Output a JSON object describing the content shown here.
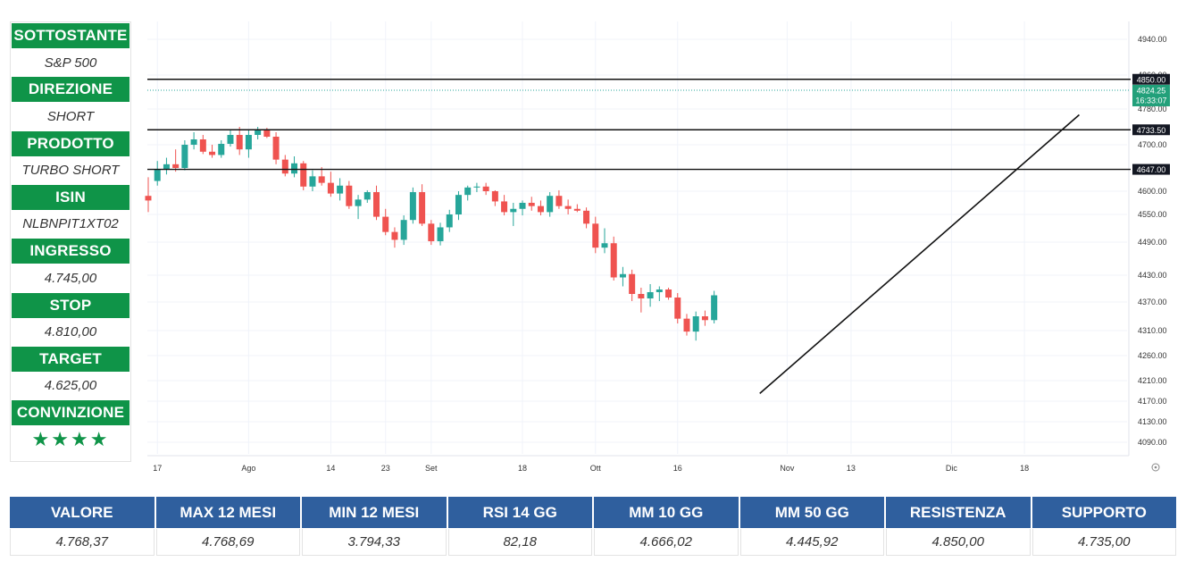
{
  "panel": {
    "items": [
      {
        "label": "SOTTOSTANTE",
        "value": "S&P 500"
      },
      {
        "label": "DIREZIONE",
        "value": "SHORT"
      },
      {
        "label": "PRODOTTO",
        "value": "TURBO SHORT"
      },
      {
        "label": "ISIN",
        "value": "NLBNPIT1XT02"
      },
      {
        "label": "INGRESSO",
        "value": "4.745,00"
      },
      {
        "label": "STOP",
        "value": "4.810,00"
      },
      {
        "label": "TARGET",
        "value": "4.625,00"
      },
      {
        "label": "CONVINZIONE",
        "value": "★★★★"
      }
    ],
    "accent_color": "#0f9448"
  },
  "stats": {
    "header_color": "#2f5f9e",
    "columns": [
      {
        "label": "VALORE",
        "value": "4.768,37"
      },
      {
        "label": "MAX 12 MESI",
        "value": "4.768,69"
      },
      {
        "label": "MIN 12 MESI",
        "value": "3.794,33"
      },
      {
        "label": "RSI 14 GG",
        "value": "82,18"
      },
      {
        "label": "MM 10 GG",
        "value": "4.666,02"
      },
      {
        "label": "MM 50 GG",
        "value": "4.445,92"
      },
      {
        "label": "RESISTENZA",
        "value": "4.850,00"
      },
      {
        "label": "SUPPORTO",
        "value": "4.735,00"
      }
    ]
  },
  "chart_data": {
    "type": "candlestick",
    "up_color": "#26a69a",
    "down_color": "#ef5350",
    "y_ticks": [
      "4940.00",
      "4860.00",
      "4780.00",
      "4700.00",
      "4600.00",
      "4550.00",
      "4490.00",
      "4430.00",
      "4370.00",
      "4310.00",
      "4260.00",
      "4210.00",
      "4170.00",
      "4130.00",
      "4090.00"
    ],
    "y_tick_values": [
      4940,
      4860,
      4780,
      4700,
      4600,
      4550,
      4490,
      4430,
      4370,
      4310,
      4260,
      4210,
      4170,
      4130,
      4090
    ],
    "x_ticks": [
      {
        "label": "17",
        "index": 1
      },
      {
        "label": "Ago",
        "index": 11
      },
      {
        "label": "14",
        "index": 20
      },
      {
        "label": "23",
        "index": 26
      },
      {
        "label": "Set",
        "index": 31
      },
      {
        "label": "18",
        "index": 41
      },
      {
        "label": "Ott",
        "index": 49
      },
      {
        "label": "16",
        "index": 58
      },
      {
        "label": "Nov",
        "index": 70
      },
      {
        "label": "13",
        "index": 77
      },
      {
        "label": "Dic",
        "index": 88
      },
      {
        "label": "18",
        "index": 96
      }
    ],
    "horizontal_levels": [
      {
        "value": 4850,
        "label": "4850.00"
      },
      {
        "value": 4733.5,
        "label": "4733.50"
      },
      {
        "value": 4647,
        "label": "4647.00"
      }
    ],
    "last_price": {
      "value": 4824.25,
      "label": "4824.25",
      "time": "16:33:07"
    },
    "trendline": {
      "start": {
        "index": 67,
        "value": 4185
      },
      "end": {
        "index": 102,
        "value": 4767
      }
    },
    "candles": [
      [
        4590,
        4630,
        4555,
        4580
      ],
      [
        4622,
        4665,
        4612,
        4648
      ],
      [
        4648,
        4672,
        4636,
        4658
      ],
      [
        4658,
        4690,
        4642,
        4650
      ],
      [
        4650,
        4710,
        4645,
        4700
      ],
      [
        4700,
        4728,
        4690,
        4712
      ],
      [
        4712,
        4722,
        4680,
        4685
      ],
      [
        4685,
        4700,
        4672,
        4678
      ],
      [
        4678,
        4710,
        4672,
        4702
      ],
      [
        4702,
        4735,
        4696,
        4722
      ],
      [
        4722,
        4740,
        4678,
        4690
      ],
      [
        4690,
        4735,
        4672,
        4722
      ],
      [
        4722,
        4740,
        4712,
        4732
      ],
      [
        4732,
        4738,
        4715,
        4718
      ],
      [
        4718,
        4728,
        4658,
        4668
      ],
      [
        4668,
        4678,
        4632,
        4638
      ],
      [
        4638,
        4675,
        4630,
        4660
      ],
      [
        4660,
        4665,
        4602,
        4610
      ],
      [
        4610,
        4645,
        4600,
        4632
      ],
      [
        4632,
        4652,
        4612,
        4618
      ],
      [
        4618,
        4642,
        4588,
        4595
      ],
      [
        4595,
        4628,
        4580,
        4612
      ],
      [
        4612,
        4622,
        4562,
        4568
      ],
      [
        4568,
        4592,
        4540,
        4582
      ],
      [
        4582,
        4602,
        4575,
        4598
      ],
      [
        4598,
        4612,
        4538,
        4545
      ],
      [
        4545,
        4562,
        4505,
        4512
      ],
      [
        4512,
        4522,
        4480,
        4495
      ],
      [
        4495,
        4548,
        4485,
        4538
      ],
      [
        4538,
        4608,
        4530,
        4598
      ],
      [
        4598,
        4615,
        4525,
        4530
      ],
      [
        4530,
        4538,
        4485,
        4492
      ],
      [
        4492,
        4532,
        4484,
        4522
      ],
      [
        4522,
        4560,
        4512,
        4550
      ],
      [
        4550,
        4600,
        4538,
        4592
      ],
      [
        4592,
        4612,
        4580,
        4608
      ],
      [
        4608,
        4618,
        4598,
        4610
      ],
      [
        4610,
        4618,
        4592,
        4600
      ],
      [
        4600,
        4602,
        4568,
        4578
      ],
      [
        4578,
        4592,
        4548,
        4555
      ],
      [
        4555,
        4575,
        4525,
        4562
      ],
      [
        4562,
        4580,
        4548,
        4575
      ],
      [
        4575,
        4588,
        4558,
        4568
      ],
      [
        4568,
        4580,
        4548,
        4555
      ],
      [
        4555,
        4598,
        4545,
        4590
      ],
      [
        4590,
        4602,
        4562,
        4568
      ],
      [
        4568,
        4582,
        4550,
        4562
      ],
      [
        4562,
        4572,
        4555,
        4558
      ],
      [
        4558,
        4565,
        4520,
        4530
      ],
      [
        4530,
        4545,
        4470,
        4480
      ],
      [
        4480,
        4520,
        4470,
        4488
      ],
      [
        4488,
        4502,
        4418,
        4425
      ],
      [
        4425,
        4445,
        4405,
        4432
      ],
      [
        4432,
        4440,
        4372,
        4388
      ],
      [
        4388,
        4402,
        4348,
        4378
      ],
      [
        4378,
        4410,
        4360,
        4392
      ],
      [
        4392,
        4405,
        4372,
        4398
      ],
      [
        4398,
        4402,
        4375,
        4380
      ],
      [
        4380,
        4390,
        4325,
        4335
      ],
      [
        4335,
        4345,
        4300,
        4308
      ],
      [
        4308,
        4350,
        4290,
        4340
      ],
      [
        4340,
        4352,
        4320,
        4332
      ],
      [
        4332,
        4395,
        4325,
        4385
      ]
    ]
  }
}
